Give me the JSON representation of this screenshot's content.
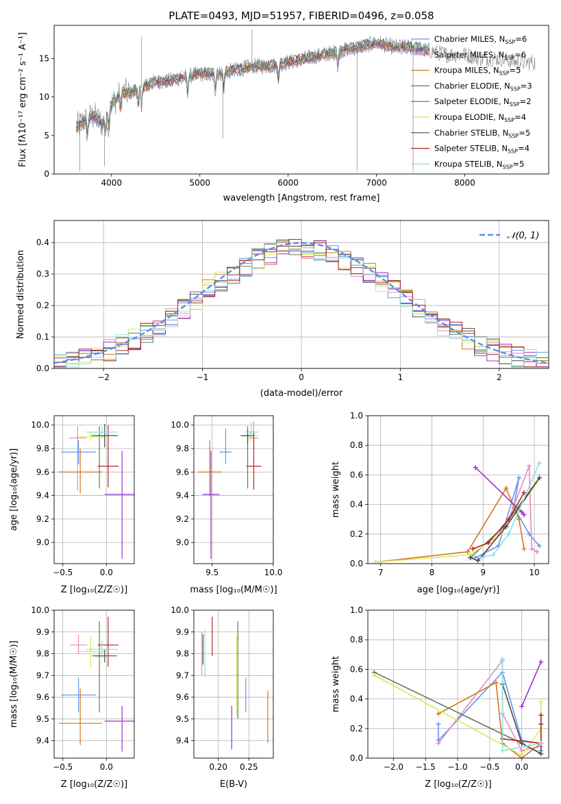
{
  "chart_data": [
    {
      "panel": "spectrum",
      "type": "line",
      "title": "PLATE=0493, MJD=51957, FIBERID=0496, z=0.058",
      "xlabel": "wavelength [Angstrom, rest frame]",
      "ylabel": "Flux [fλ10⁻¹⁷ erg cm⁻² s⁻¹ A⁻¹]",
      "xlim": [
        3350,
        8950
      ],
      "ylim": [
        0,
        19.3
      ],
      "xticks": [
        "4000",
        "5000",
        "6000",
        "7000",
        "8000"
      ],
      "yticks": [
        "0",
        "5",
        "10",
        "15"
      ],
      "legend_position": "upper right",
      "data_series": {
        "name": "data",
        "color": "#808080",
        "x": [
          3600,
          3700,
          3800,
          3900,
          4000,
          4100,
          4200,
          4300,
          4400,
          4500,
          4600,
          4800,
          5000,
          5200,
          5400,
          5600,
          5800,
          6000,
          6200,
          6400,
          6600,
          6800,
          7000,
          7200,
          7400,
          7600,
          7800,
          8000,
          8200,
          8400,
          8600,
          8800
        ],
        "y": [
          6.0,
          7.0,
          7.5,
          6.5,
          9.0,
          10.5,
          10.5,
          11.0,
          11.5,
          12.0,
          12.0,
          12.5,
          13.0,
          13.0,
          13.5,
          14.0,
          14.0,
          14.5,
          15.0,
          15.5,
          16.0,
          16.5,
          17.0,
          16.5,
          16.5,
          16.0,
          15.5,
          15.5,
          15.0,
          15.0,
          14.5,
          14.5
        ]
      },
      "series": [
        {
          "name": "Chabrier MILES, N_SSP=6",
          "label_main": "Chabrier MILES, N",
          "nssp": "6",
          "color": "#6495ed"
        },
        {
          "name": "Salpeter MILES, N_SSP=6",
          "label_main": "Salpeter MILES, N",
          "nssp": "6",
          "color": "#e889b9"
        },
        {
          "name": "Kroupa MILES, N_SSP=5",
          "label_main": "Kroupa MILES, N",
          "nssp": "5",
          "color": "#d2761e"
        },
        {
          "name": "Chabrier ELODIE, N_SSP=3",
          "label_main": "Chabrier ELODIE, N",
          "nssp": "3",
          "color": "#5a7d5a"
        },
        {
          "name": "Salpeter ELODIE, N_SSP=2",
          "label_main": "Salpeter ELODIE, N",
          "nssp": "2",
          "color": "#9932cc"
        },
        {
          "name": "Kroupa ELODIE, N_SSP=4",
          "label_main": "Kroupa ELODIE, N",
          "nssp": "4",
          "color": "#d4ea5a"
        },
        {
          "name": "Chabrier STELIB, N_SSP=5",
          "label_main": "Chabrier STELIB, N",
          "nssp": "5",
          "color": "#4a4a4a"
        },
        {
          "name": "Salpeter STELIB, N_SSP=4",
          "label_main": "Salpeter STELIB, N",
          "nssp": "4",
          "color": "#b22222"
        },
        {
          "name": "Kroupa STELIB, N_SSP=5",
          "label_main": "Kroupa STELIB, N",
          "nssp": "5",
          "color": "#8ee0e0"
        }
      ]
    },
    {
      "panel": "residuals",
      "type": "line",
      "xlabel": "(data-model)/error",
      "ylabel": "Normed distribution",
      "xlim": [
        -2.5,
        2.5
      ],
      "ylim": [
        0,
        0.47
      ],
      "xticks": [
        "−2",
        "−1",
        "0",
        "1",
        "2"
      ],
      "yticks": [
        "0.0",
        "0.1",
        "0.2",
        "0.3",
        "0.4"
      ],
      "grid": true,
      "legend": {
        "label": "𝒩(0, 1)",
        "position": "upper right"
      },
      "gaussian": {
        "mean": 0,
        "sigma": 1,
        "color": "#5b8ee0",
        "style": "dashed"
      }
    },
    {
      "panel": "age_vs_Z",
      "type": "scatter",
      "xlabel": "Z [log₁₀(Z/Z☉)]",
      "ylabel": "age  [log₁₀(age/yr)]",
      "xlim": [
        -0.6,
        0.32
      ],
      "ylim": [
        8.82,
        10.08
      ],
      "xticks": [
        "−0.5",
        "0.0"
      ],
      "yticks": [
        "9.0",
        "9.2",
        "9.4",
        "9.6",
        "9.8",
        "10.0"
      ],
      "grid": true,
      "points": [
        {
          "x": -0.32,
          "y": 9.77,
          "xerr": [
            0.2,
            0.2
          ],
          "yerr": [
            0.1,
            0.1
          ],
          "color": "#6495ed"
        },
        {
          "x": -0.33,
          "y": 9.89,
          "xerr": [
            0.1,
            0.1
          ],
          "yerr": [
            0.45,
            0.1
          ],
          "color": "#e889b9"
        },
        {
          "x": -0.3,
          "y": 9.6,
          "xerr": [
            0.25,
            0.25
          ],
          "yerr": [
            0.18,
            0.2
          ],
          "color": "#d2761e"
        },
        {
          "x": -0.08,
          "y": 9.91,
          "xerr": [
            0.03,
            0.03
          ],
          "yerr": [
            0.45,
            0.08
          ],
          "color": "#5a7d5a"
        },
        {
          "x": 0.18,
          "y": 9.41,
          "xerr": [
            0.2,
            0.2
          ],
          "yerr": [
            0.55,
            0.37
          ],
          "color": "#9932cc"
        },
        {
          "x": -0.18,
          "y": 9.9,
          "xerr": [
            0.17,
            0.17
          ],
          "yerr": [
            0.04,
            0.04
          ],
          "color": "#d4ea5a"
        },
        {
          "x": -0.02,
          "y": 9.91,
          "xerr": [
            0.15,
            0.15
          ],
          "yerr": [
            0.1,
            0.1
          ],
          "color": "#4a4a4a"
        },
        {
          "x": 0.02,
          "y": 9.65,
          "xerr": [
            0.12,
            0.12
          ],
          "yerr": [
            0.18,
            0.35
          ],
          "color": "#b22222"
        },
        {
          "x": -0.05,
          "y": 9.94,
          "xerr": [
            0.18,
            0.18
          ],
          "yerr": [
            0.05,
            0.05
          ],
          "color": "#8ee0e0"
        }
      ]
    },
    {
      "panel": "age_vs_mass",
      "type": "scatter",
      "xlabel": "mass [log₁₀(M/M☉)]",
      "xlim": [
        9.35,
        10.0
      ],
      "ylim": [
        8.82,
        10.08
      ],
      "xticks": [
        "9.5",
        "10.0"
      ],
      "yticks": [
        "9.0",
        "9.2",
        "9.4",
        "9.6",
        "9.8",
        "10.0"
      ],
      "grid": true,
      "points": [
        {
          "x": 9.61,
          "y": 9.77,
          "xerr": [
            0.05,
            0.05
          ],
          "yerr": [
            0.1,
            0.2
          ],
          "color": "#6495ed"
        },
        {
          "x": 9.84,
          "y": 9.89,
          "xerr": [
            0.04,
            0.04
          ],
          "yerr": [
            0.1,
            0.14
          ],
          "color": "#e889b9"
        },
        {
          "x": 9.48,
          "y": 9.6,
          "xerr": [
            0.1,
            0.1
          ],
          "yerr": [
            0.2,
            0.27
          ],
          "color": "#d2761e"
        },
        {
          "x": 9.79,
          "y": 9.91,
          "xerr": [
            0.06,
            0.06
          ],
          "yerr": [
            0.45,
            0.08
          ],
          "color": "#5a7d5a"
        },
        {
          "x": 9.49,
          "y": 9.41,
          "xerr": [
            0.07,
            0.07
          ],
          "yerr": [
            0.55,
            0.37
          ],
          "color": "#9932cc"
        },
        {
          "x": 9.81,
          "y": 9.91,
          "xerr": [
            0.07,
            0.07
          ],
          "yerr": [
            0.05,
            0.05
          ],
          "color": "#d4ea5a"
        },
        {
          "x": 9.79,
          "y": 9.91,
          "xerr": [
            0.05,
            0.05
          ],
          "yerr": [
            0.07,
            0.05
          ],
          "color": "#4a4a4a"
        },
        {
          "x": 9.84,
          "y": 9.65,
          "xerr": [
            0.06,
            0.06
          ],
          "yerr": [
            0.2,
            0.3
          ],
          "color": "#b22222"
        },
        {
          "x": 9.82,
          "y": 9.94,
          "xerr": [
            0.06,
            0.06
          ],
          "yerr": [
            0.05,
            0.09
          ],
          "color": "#8ee0e0"
        }
      ]
    },
    {
      "panel": "weight_vs_age",
      "type": "line",
      "xlabel": "age  [log₁₀(age/yr)]",
      "ylabel": "mass weight",
      "xlim": [
        6.75,
        10.28
      ],
      "ylim": [
        0,
        1.0
      ],
      "xticks": [
        "7",
        "8",
        "9",
        "10"
      ],
      "yticks": [
        "0.0",
        "0.2",
        "0.4",
        "0.6",
        "0.8",
        "1.0"
      ],
      "grid": true,
      "series": [
        {
          "color": "#6495ed",
          "x": [
            8.85,
            9.3,
            9.7,
            9.6,
            9.9,
            10.1
          ],
          "y": [
            0.04,
            0.12,
            0.58,
            0.38,
            0.2,
            0.12
          ]
        },
        {
          "color": "#e889b9",
          "x": [
            9.0,
            9.5,
            9.9,
            9.95,
            10.05
          ],
          "y": [
            0.05,
            0.3,
            0.66,
            0.1,
            0.08
          ]
        },
        {
          "color": "#d2761e",
          "x": [
            6.9,
            8.7,
            9.45,
            9.7,
            9.8
          ],
          "y": [
            0.01,
            0.08,
            0.51,
            0.3,
            0.1
          ]
        },
        {
          "color": "#5a7d5a",
          "x": [
            8.75,
            9.4,
            10.1
          ],
          "y": [
            0.04,
            0.25,
            0.58
          ]
        },
        {
          "color": "#9932cc",
          "x": [
            8.85,
            9.75,
            9.8
          ],
          "y": [
            0.65,
            0.35,
            0.33
          ]
        },
        {
          "color": "#d4ea5a",
          "x": [
            6.9,
            8.75,
            9.35,
            10.05
          ],
          "y": [
            0.01,
            0.06,
            0.2,
            0.55
          ]
        },
        {
          "color": "#4a4a4a",
          "x": [
            8.75,
            8.9,
            9.45,
            10.1
          ],
          "y": [
            0.04,
            0.02,
            0.25,
            0.58
          ]
        },
        {
          "color": "#b22222",
          "x": [
            8.8,
            9.1,
            9.5,
            9.8
          ],
          "y": [
            0.1,
            0.14,
            0.3,
            0.48
          ]
        },
        {
          "color": "#8ee0e0",
          "x": [
            8.95,
            9.2,
            9.5,
            10.1
          ],
          "y": [
            0.04,
            0.06,
            0.2,
            0.68
          ]
        }
      ]
    },
    {
      "panel": "mass_vs_Z",
      "type": "scatter",
      "xlabel": "Z [log₁₀(Z/Z☉)]",
      "ylabel": "mass [log₁₀(M/M☉)]",
      "xlim": [
        -0.6,
        0.32
      ],
      "ylim": [
        9.32,
        10.0
      ],
      "xticks": [
        "−0.5",
        "0.0"
      ],
      "yticks": [
        "9.4",
        "9.5",
        "9.6",
        "9.7",
        "9.8",
        "9.9",
        "10.0"
      ],
      "grid": true,
      "points": [
        {
          "x": -0.32,
          "y": 9.61,
          "xerr": [
            0.2,
            0.2
          ],
          "yerr": [
            0.08,
            0.08
          ],
          "color": "#6495ed"
        },
        {
          "x": -0.32,
          "y": 9.84,
          "xerr": [
            0.1,
            0.1
          ],
          "yerr": [
            0.04,
            0.05
          ],
          "color": "#e889b9"
        },
        {
          "x": -0.3,
          "y": 9.48,
          "xerr": [
            0.25,
            0.25
          ],
          "yerr": [
            0.1,
            0.16
          ],
          "color": "#d2761e"
        },
        {
          "x": -0.08,
          "y": 9.79,
          "xerr": [
            0.05,
            0.05
          ],
          "yerr": [
            0.26,
            0.16
          ],
          "color": "#5a7d5a"
        },
        {
          "x": 0.18,
          "y": 9.49,
          "xerr": [
            0.2,
            0.2
          ],
          "yerr": [
            0.14,
            0.07
          ],
          "color": "#9932cc"
        },
        {
          "x": -0.18,
          "y": 9.81,
          "xerr": [
            0.17,
            0.17
          ],
          "yerr": [
            0.07,
            0.07
          ],
          "color": "#d4ea5a"
        },
        {
          "x": -0.02,
          "y": 9.79,
          "xerr": [
            0.14,
            0.14
          ],
          "yerr": [
            0.03,
            0.03
          ],
          "color": "#4a4a4a"
        },
        {
          "x": 0.02,
          "y": 9.84,
          "xerr": [
            0.12,
            0.12
          ],
          "yerr": [
            0.1,
            0.13
          ],
          "color": "#b22222"
        },
        {
          "x": -0.05,
          "y": 9.82,
          "xerr": [
            0.18,
            0.18
          ],
          "yerr": [
            0.04,
            0.04
          ],
          "color": "#8ee0e0"
        }
      ]
    },
    {
      "panel": "mass_vs_EBV",
      "type": "scatter",
      "xlabel": "E(B-V)",
      "xlim": [
        0.16,
        0.29
      ],
      "ylim": [
        9.32,
        10.0
      ],
      "xticks": [
        "0.20",
        "0.25"
      ],
      "yticks": [
        "9.4",
        "9.5",
        "9.6",
        "9.7",
        "9.8",
        "9.9",
        "10.0"
      ],
      "grid": true,
      "points": [
        {
          "x": 0.245,
          "y": 9.61,
          "yerr": [
            0.08,
            0.08
          ],
          "color": "#6495ed"
        },
        {
          "x": 0.173,
          "y": 9.8,
          "yerr": [
            0.1,
            0.1
          ],
          "color": "#e889b9"
        },
        {
          "x": 0.281,
          "y": 9.5,
          "yerr": [
            0.11,
            0.13
          ],
          "color": "#d2761e"
        },
        {
          "x": 0.232,
          "y": 9.72,
          "yerr": [
            0.22,
            0.23
          ],
          "color": "#5a7d5a"
        },
        {
          "x": 0.222,
          "y": 9.46,
          "yerr": [
            0.1,
            0.1
          ],
          "color": "#9932cc"
        },
        {
          "x": 0.23,
          "y": 9.7,
          "yerr": [
            0.18,
            0.18
          ],
          "color": "#d4ea5a"
        },
        {
          "x": 0.175,
          "y": 9.82,
          "yerr": [
            0.07,
            0.07
          ],
          "color": "#4a4a4a"
        },
        {
          "x": 0.19,
          "y": 9.88,
          "yerr": [
            0.09,
            0.09
          ],
          "color": "#b22222"
        },
        {
          "x": 0.178,
          "y": 9.8,
          "yerr": [
            0.11,
            0.11
          ],
          "color": "#8ee0e0"
        }
      ]
    },
    {
      "panel": "weight_vs_Z",
      "type": "line",
      "xlabel": "Z [log₁₀(Z/Z☉)]",
      "ylabel": "mass weight",
      "xlim": [
        -2.4,
        0.42
      ],
      "ylim": [
        0,
        1.0
      ],
      "xticks": [
        "−2.0",
        "−1.5",
        "−1.0",
        "−0.5",
        "0.0"
      ],
      "yticks": [
        "0.0",
        "0.2",
        "0.4",
        "0.6",
        "0.8",
        "1.0"
      ],
      "grid": true,
      "series": [
        {
          "color": "#6495ed",
          "x": [
            -1.3,
            -1.3,
            -0.3,
            0.0,
            0.3,
            0.3
          ],
          "y": [
            0.23,
            0.12,
            0.58,
            0.12,
            0.1,
            0.05
          ]
        },
        {
          "color": "#e889b9",
          "x": [
            -1.3,
            -0.3,
            -0.3,
            0.0,
            0.3
          ],
          "y": [
            0.1,
            0.66,
            0.3,
            0.05,
            0.08
          ]
        },
        {
          "color": "#d2761e",
          "x": [
            -1.3,
            -0.4,
            -0.3,
            0.0,
            0.3
          ],
          "y": [
            0.3,
            0.51,
            0.1,
            0.0,
            0.1
          ]
        },
        {
          "color": "#5a7d5a",
          "x": [
            -2.3,
            0.0,
            0.3
          ],
          "y": [
            0.58,
            0.1,
            0.03
          ]
        },
        {
          "color": "#9932cc",
          "x": [
            0.0,
            0.3
          ],
          "y": [
            0.35,
            0.65
          ]
        },
        {
          "color": "#d4ea5a",
          "x": [
            -2.3,
            0.0,
            0.3,
            0.3
          ],
          "y": [
            0.56,
            0.02,
            0.2,
            0.38
          ]
        },
        {
          "color": "#4a4a4a",
          "x": [
            -0.3,
            0.0,
            0.3,
            0.3
          ],
          "y": [
            0.5,
            0.1,
            0.03,
            0.23
          ]
        },
        {
          "color": "#b22222",
          "x": [
            -0.3,
            0.3,
            0.3
          ],
          "y": [
            0.13,
            0.1,
            0.29
          ]
        },
        {
          "color": "#8ee0e0",
          "x": [
            -0.3,
            -0.3,
            0.3
          ],
          "y": [
            0.67,
            0.05,
            0.1
          ]
        }
      ]
    }
  ]
}
